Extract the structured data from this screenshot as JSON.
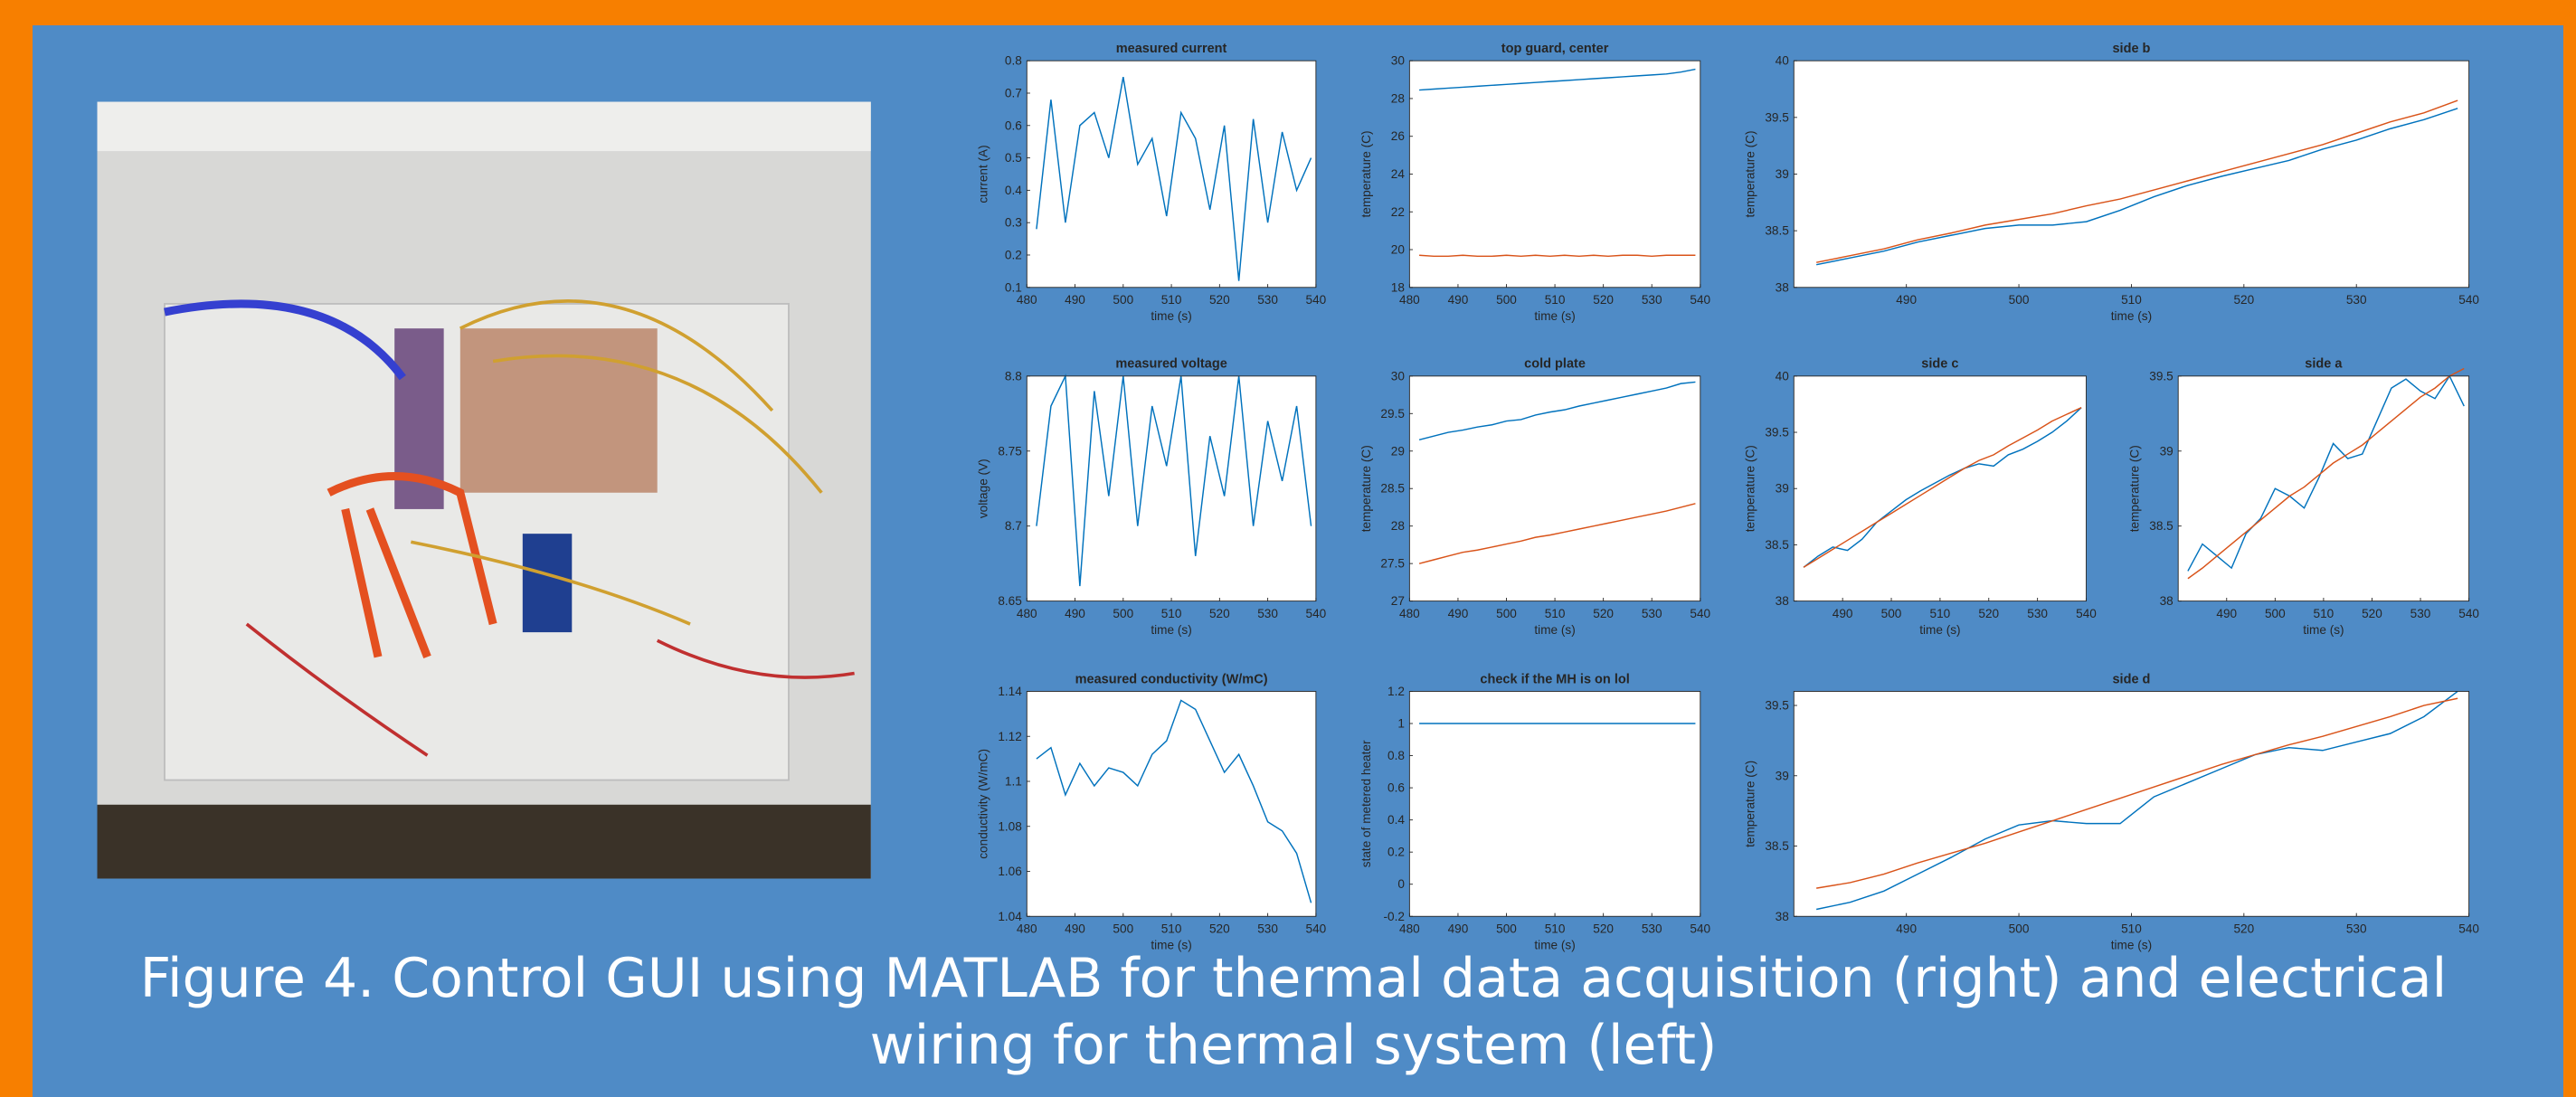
{
  "caption": "Figure 4. Control GUI using MATLAB for thermal data acquisition (right) and electrical wiring for thermal system (left)",
  "chart_data": [
    {
      "type": "line",
      "title": "measured current",
      "xlabel": "time (s)",
      "ylabel": "current (A)",
      "x": [
        482,
        485,
        488,
        491,
        494,
        497,
        500,
        503,
        506,
        509,
        512,
        515,
        518,
        521,
        524,
        527,
        530,
        533,
        536,
        539
      ],
      "series": [
        {
          "color": "#0072bd",
          "values": [
            0.28,
            0.68,
            0.3,
            0.6,
            0.64,
            0.5,
            0.75,
            0.48,
            0.56,
            0.32,
            0.64,
            0.56,
            0.34,
            0.6,
            0.12,
            0.62,
            0.3,
            0.58,
            0.4,
            0.5
          ]
        }
      ],
      "xlim": [
        480,
        540
      ],
      "ylim": [
        0.1,
        0.8
      ],
      "xticks": [
        480,
        490,
        500,
        510,
        520,
        530,
        540
      ],
      "yticks": [
        0.1,
        0.2,
        0.3,
        0.4,
        0.5,
        0.6,
        0.7,
        0.8
      ]
    },
    {
      "type": "line",
      "title": "top guard, center",
      "xlabel": "time (s)",
      "ylabel": "temperature (C)",
      "x": [
        482,
        485,
        488,
        491,
        494,
        497,
        500,
        503,
        506,
        509,
        512,
        515,
        518,
        521,
        524,
        527,
        530,
        533,
        536,
        539
      ],
      "series": [
        {
          "color": "#0072bd",
          "values": [
            28.45,
            28.5,
            28.55,
            28.6,
            28.65,
            28.7,
            28.75,
            28.8,
            28.85,
            28.9,
            28.95,
            29,
            29.05,
            29.1,
            29.15,
            29.2,
            29.25,
            29.3,
            29.4,
            29.55
          ]
        },
        {
          "color": "#d95319",
          "values": [
            19.7,
            19.65,
            19.65,
            19.7,
            19.65,
            19.65,
            19.7,
            19.65,
            19.7,
            19.65,
            19.7,
            19.65,
            19.7,
            19.65,
            19.7,
            19.7,
            19.65,
            19.7,
            19.7,
            19.7
          ]
        }
      ],
      "xlim": [
        480,
        540
      ],
      "ylim": [
        18,
        30
      ],
      "xticks": [
        480,
        490,
        500,
        510,
        520,
        530,
        540
      ],
      "yticks": [
        18,
        20,
        22,
        24,
        26,
        28,
        30
      ]
    },
    {
      "type": "line",
      "title": "side b",
      "xlabel": "time (s)",
      "ylabel": "temperature (C)",
      "x": [
        482,
        485,
        488,
        491,
        494,
        497,
        500,
        503,
        506,
        509,
        512,
        515,
        518,
        521,
        524,
        527,
        530,
        533,
        536,
        539
      ],
      "series": [
        {
          "color": "#0072bd",
          "values": [
            38.2,
            38.26,
            38.32,
            38.4,
            38.46,
            38.52,
            38.55,
            38.55,
            38.58,
            38.68,
            38.8,
            38.9,
            38.98,
            39.05,
            39.12,
            39.22,
            39.3,
            39.4,
            39.48,
            39.58
          ]
        },
        {
          "color": "#d95319",
          "values": [
            38.22,
            38.28,
            38.34,
            38.42,
            38.48,
            38.55,
            38.6,
            38.65,
            38.72,
            38.78,
            38.86,
            38.94,
            39.02,
            39.1,
            39.18,
            39.26,
            39.36,
            39.46,
            39.54,
            39.65
          ]
        }
      ],
      "xlim": [
        480,
        540
      ],
      "ylim": [
        38,
        40
      ],
      "xticks": [
        490,
        500,
        510,
        520,
        530,
        540
      ],
      "yticks": [
        38,
        38.5,
        39,
        39.5,
        40
      ]
    },
    {
      "type": "line",
      "title": "measured voltage",
      "xlabel": "time (s)",
      "ylabel": "voltage (V)",
      "x": [
        482,
        485,
        488,
        491,
        494,
        497,
        500,
        503,
        506,
        509,
        512,
        515,
        518,
        521,
        524,
        527,
        530,
        533,
        536,
        539
      ],
      "series": [
        {
          "color": "#0072bd",
          "values": [
            8.7,
            8.78,
            8.8,
            8.66,
            8.79,
            8.72,
            8.8,
            8.7,
            8.78,
            8.74,
            8.8,
            8.68,
            8.76,
            8.72,
            8.8,
            8.7,
            8.77,
            8.73,
            8.78,
            8.7
          ]
        }
      ],
      "xlim": [
        480,
        540
      ],
      "ylim": [
        8.65,
        8.8
      ],
      "xticks": [
        480,
        490,
        500,
        510,
        520,
        530,
        540
      ],
      "yticks": [
        8.65,
        8.7,
        8.75,
        8.8
      ]
    },
    {
      "type": "line",
      "title": "cold plate",
      "xlabel": "time (s)",
      "ylabel": "temperature (C)",
      "x": [
        482,
        485,
        488,
        491,
        494,
        497,
        500,
        503,
        506,
        509,
        512,
        515,
        518,
        521,
        524,
        527,
        530,
        533,
        536,
        539
      ],
      "series": [
        {
          "color": "#0072bd",
          "values": [
            29.15,
            29.2,
            29.25,
            29.28,
            29.32,
            29.35,
            29.4,
            29.42,
            29.48,
            29.52,
            29.55,
            29.6,
            29.64,
            29.68,
            29.72,
            29.76,
            29.8,
            29.84,
            29.9,
            29.92
          ]
        },
        {
          "color": "#d95319",
          "values": [
            27.5,
            27.55,
            27.6,
            27.65,
            27.68,
            27.72,
            27.76,
            27.8,
            27.85,
            27.88,
            27.92,
            27.96,
            28,
            28.04,
            28.08,
            28.12,
            28.16,
            28.2,
            28.25,
            28.3
          ]
        }
      ],
      "xlim": [
        480,
        540
      ],
      "ylim": [
        27,
        30
      ],
      "xticks": [
        480,
        490,
        500,
        510,
        520,
        530,
        540
      ],
      "yticks": [
        27,
        27.5,
        28,
        28.5,
        29,
        29.5,
        30
      ]
    },
    {
      "type": "line",
      "title": "side c",
      "xlabel": "time (s)",
      "ylabel": "temperature (C)",
      "x": [
        482,
        485,
        488,
        491,
        494,
        497,
        500,
        503,
        506,
        509,
        512,
        515,
        518,
        521,
        524,
        527,
        530,
        533,
        536,
        539
      ],
      "series": [
        {
          "color": "#0072bd",
          "values": [
            38.3,
            38.4,
            38.48,
            38.45,
            38.55,
            38.7,
            38.8,
            38.9,
            38.98,
            39.05,
            39.12,
            39.18,
            39.22,
            39.2,
            39.3,
            39.35,
            39.42,
            39.5,
            39.6,
            39.72
          ]
        },
        {
          "color": "#d95319",
          "values": [
            38.3,
            38.38,
            38.46,
            38.54,
            38.62,
            38.7,
            38.78,
            38.86,
            38.94,
            39.02,
            39.1,
            39.18,
            39.25,
            39.3,
            39.38,
            39.45,
            39.52,
            39.6,
            39.66,
            39.72
          ]
        }
      ],
      "xlim": [
        480,
        540
      ],
      "ylim": [
        38,
        40
      ],
      "xticks": [
        490,
        500,
        510,
        520,
        530,
        540
      ],
      "yticks": [
        38,
        38.5,
        39,
        39.5,
        40
      ]
    },
    {
      "type": "line",
      "title": "side a",
      "xlabel": "time (s)",
      "ylabel": "temperature (C)",
      "x": [
        482,
        485,
        488,
        491,
        494,
        497,
        500,
        503,
        506,
        509,
        512,
        515,
        518,
        521,
        524,
        527,
        530,
        533,
        536,
        539
      ],
      "series": [
        {
          "color": "#0072bd",
          "values": [
            38.2,
            38.38,
            38.3,
            38.22,
            38.45,
            38.55,
            38.75,
            38.7,
            38.62,
            38.82,
            39.05,
            38.95,
            38.98,
            39.2,
            39.42,
            39.48,
            39.4,
            39.35,
            39.5,
            39.3
          ]
        },
        {
          "color": "#d95319",
          "values": [
            38.15,
            38.22,
            38.3,
            38.38,
            38.46,
            38.54,
            38.62,
            38.7,
            38.76,
            38.84,
            38.92,
            38.98,
            39.04,
            39.12,
            39.2,
            39.28,
            39.36,
            39.42,
            39.5,
            39.55
          ]
        }
      ],
      "xlim": [
        480,
        540
      ],
      "ylim": [
        38,
        39.5
      ],
      "xticks": [
        490,
        500,
        510,
        520,
        530,
        540
      ],
      "yticks": [
        38,
        38.5,
        39,
        39.5
      ]
    },
    {
      "type": "line",
      "title": "measured conductivity (W/mC)",
      "xlabel": "time (s)",
      "ylabel": "conductivity (W/mC)",
      "x": [
        482,
        485,
        488,
        491,
        494,
        497,
        500,
        503,
        506,
        509,
        512,
        515,
        518,
        521,
        524,
        527,
        530,
        533,
        536,
        539
      ],
      "series": [
        {
          "color": "#0072bd",
          "values": [
            1.11,
            1.115,
            1.094,
            1.108,
            1.098,
            1.106,
            1.104,
            1.098,
            1.112,
            1.118,
            1.136,
            1.132,
            1.118,
            1.104,
            1.112,
            1.098,
            1.082,
            1.078,
            1.068,
            1.046
          ]
        }
      ],
      "xlim": [
        480,
        540
      ],
      "ylim": [
        1.04,
        1.14
      ],
      "xticks": [
        480,
        490,
        500,
        510,
        520,
        530,
        540
      ],
      "yticks": [
        1.04,
        1.06,
        1.08,
        1.1,
        1.12,
        1.14
      ]
    },
    {
      "type": "line",
      "title": "check if the MH is on lol",
      "xlabel": "time (s)",
      "ylabel": "state of metered heater",
      "x": [
        482,
        485,
        488,
        491,
        494,
        497,
        500,
        503,
        506,
        509,
        512,
        515,
        518,
        521,
        524,
        527,
        530,
        533,
        536,
        539
      ],
      "series": [
        {
          "color": "#0072bd",
          "values": [
            1,
            1,
            1,
            1,
            1,
            1,
            1,
            1,
            1,
            1,
            1,
            1,
            1,
            1,
            1,
            1,
            1,
            1,
            1,
            1
          ]
        }
      ],
      "xlim": [
        480,
        540
      ],
      "ylim": [
        -0.2,
        1.2
      ],
      "xticks": [
        480,
        490,
        500,
        510,
        520,
        530,
        540
      ],
      "yticks": [
        -0.2,
        0,
        0.2,
        0.4,
        0.6,
        0.8,
        1,
        1.2
      ]
    },
    {
      "type": "line",
      "title": "side d",
      "xlabel": "time (s)",
      "ylabel": "temperature (C)",
      "x": [
        482,
        485,
        488,
        491,
        494,
        497,
        500,
        503,
        506,
        509,
        512,
        515,
        518,
        521,
        524,
        527,
        530,
        533,
        536,
        539
      ],
      "series": [
        {
          "color": "#0072bd",
          "values": [
            38.05,
            38.1,
            38.18,
            38.3,
            38.42,
            38.55,
            38.65,
            38.68,
            38.66,
            38.66,
            38.85,
            38.95,
            39.05,
            39.15,
            39.2,
            39.18,
            39.24,
            39.3,
            39.42,
            39.6
          ]
        },
        {
          "color": "#d95319",
          "values": [
            38.2,
            38.24,
            38.3,
            38.38,
            38.45,
            38.52,
            38.6,
            38.68,
            38.76,
            38.84,
            38.92,
            39,
            39.08,
            39.15,
            39.22,
            39.28,
            39.35,
            39.42,
            39.5,
            39.55
          ]
        }
      ],
      "xlim": [
        480,
        540
      ],
      "ylim": [
        38,
        39.6
      ],
      "xticks": [
        490,
        500,
        510,
        520,
        530,
        540
      ],
      "yticks": [
        38,
        38.5,
        39,
        39.5
      ]
    }
  ]
}
